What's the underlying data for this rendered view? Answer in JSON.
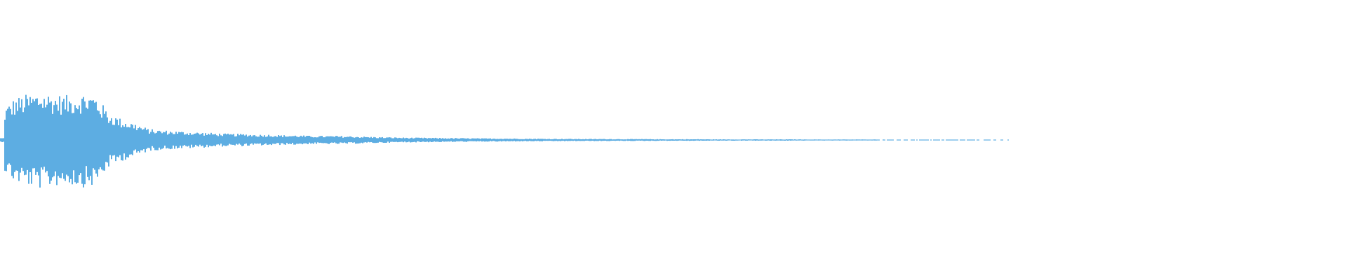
{
  "chart_data": {
    "type": "area",
    "title": "",
    "xlabel": "",
    "ylabel": "",
    "ylim": [
      -1,
      1
    ],
    "grid": false,
    "legend": "none",
    "color": "#5DADE2",
    "background": "#ffffff",
    "series": [
      {
        "envelope_peak_amplitude": [
          0.2,
          0.3,
          0.33,
          0.35,
          0.33,
          0.32,
          0.34,
          0.33,
          0.2,
          0.15,
          0.12,
          0.08,
          0.07,
          0.065,
          0.06,
          0.055,
          0.05,
          0.045,
          0.045,
          0.04,
          0.04,
          0.035,
          0.035,
          0.03,
          0.03,
          0.03,
          0.028,
          0.025,
          0.022,
          0.02,
          0.018,
          0.017,
          0.016,
          0.015,
          0.014,
          0.013,
          0.012,
          0.012,
          0.011,
          0.01,
          0.01,
          0.009,
          0.009,
          0.008,
          0.008,
          0.008,
          0.007,
          0.007,
          0.007,
          0.006,
          0.006,
          0.006,
          0.006,
          0.005,
          0.005,
          0.005,
          0.005,
          0.005,
          0.005,
          0.005,
          0.004,
          0.004,
          0.004,
          0.004,
          0.004,
          0.004,
          0.003,
          0.003,
          0.003,
          0.003,
          0.003,
          0.003,
          0.003,
          0.002,
          0.002,
          0,
          0,
          0,
          0,
          0,
          0,
          0,
          0,
          0,
          0,
          0,
          0,
          0,
          0,
          0,
          0,
          0,
          0,
          0,
          0,
          0,
          0,
          0,
          0,
          0
        ]
      }
    ]
  }
}
